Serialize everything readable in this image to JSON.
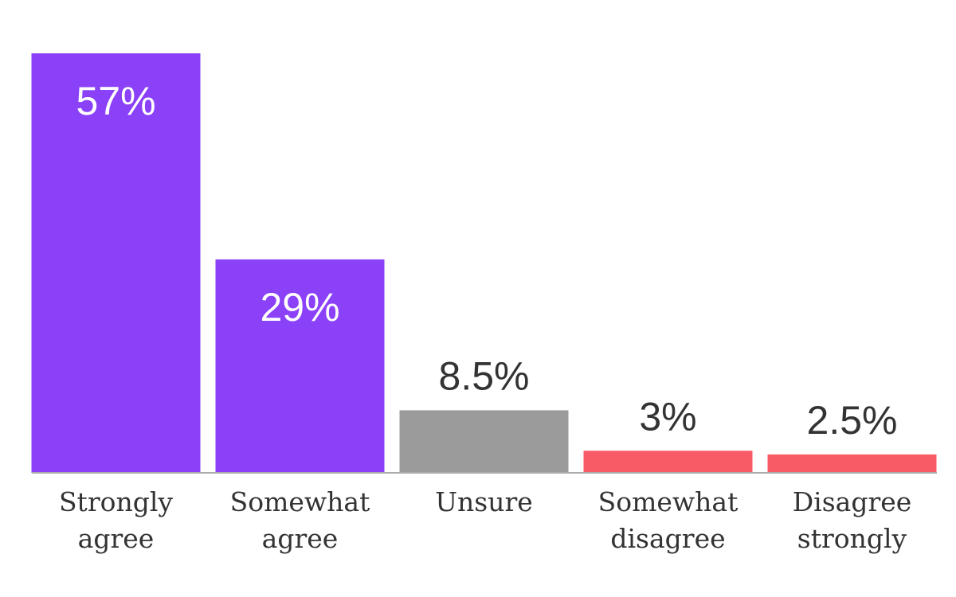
{
  "chart_data": {
    "type": "bar",
    "categories": [
      "Strongly agree",
      "Somewhat agree",
      "Unsure",
      "Somewhat disagree",
      "Disagree strongly"
    ],
    "values": [
      57,
      29,
      8.5,
      3,
      2.5
    ],
    "value_labels": [
      "57%",
      "29%",
      "8.5%",
      "3%",
      "2.5%"
    ],
    "colors": [
      "#8a41f7",
      "#8a41f7",
      "#9b9b9b",
      "#f95b66",
      "#f95b66"
    ]
  }
}
